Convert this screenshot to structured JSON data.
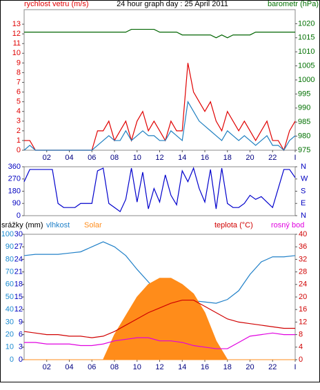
{
  "chart_data": [
    {
      "type": "line",
      "title": "24 hour graph day : 25 April 2011",
      "y_label": "rychlost vetru (m/s)",
      "y2_label": "barometr (hPa)",
      "axis_colors": {
        "y": "#e00000",
        "y2": "#007000",
        "x": "#000080"
      },
      "x": [
        0,
        0.5,
        1,
        1.5,
        2,
        2.5,
        3,
        3.5,
        4,
        4.5,
        5,
        5.5,
        6,
        6.5,
        7,
        7.5,
        8,
        8.5,
        9,
        9.5,
        10,
        10.5,
        11,
        11.5,
        12,
        12.5,
        13,
        13.5,
        14,
        14.5,
        15,
        15.5,
        16,
        16.5,
        17,
        17.5,
        18,
        18.5,
        19,
        19.5,
        20,
        20.5,
        21,
        21.5,
        22,
        22.5,
        23,
        23.5,
        24
      ],
      "xlim": [
        0,
        24
      ],
      "xticks": [
        {
          "value": 2,
          "label": "02"
        },
        {
          "value": 4,
          "label": "04"
        },
        {
          "value": 6,
          "label": "06"
        },
        {
          "value": 8,
          "label": "08"
        },
        10,
        12,
        14,
        16,
        18,
        20,
        22,
        {
          "value": 24,
          "label": "I"
        }
      ],
      "ylim": [
        0,
        14.5
      ],
      "yticks": [
        0,
        1,
        2,
        3,
        4,
        5,
        6,
        7,
        8,
        9,
        10,
        11,
        12,
        13
      ],
      "y2lim": [
        975,
        1025
      ],
      "y2ticks": [
        975,
        980,
        985,
        990,
        995,
        1000,
        1005,
        1010,
        1015,
        1020
      ],
      "series": [
        {
          "color": "#e00000",
          "values": [
            1,
            1,
            0,
            0,
            0,
            0,
            0,
            0,
            0,
            0,
            0,
            0,
            0,
            2,
            2,
            3,
            1,
            2,
            3,
            1,
            3,
            4,
            2,
            3,
            2,
            1,
            3,
            2,
            2,
            9,
            6,
            5,
            4,
            5,
            3,
            2,
            4,
            3,
            2,
            3,
            2,
            1,
            2,
            3,
            1,
            1,
            0,
            2,
            3
          ]
        },
        {
          "color": "#1e7fc0",
          "values": [
            0,
            0.5,
            0,
            0,
            0,
            0,
            0,
            0,
            0,
            0,
            0,
            0,
            0,
            0.5,
            1,
            1.5,
            1,
            1,
            2,
            1,
            1.5,
            2,
            1.5,
            1.5,
            1,
            1,
            2,
            1.5,
            1,
            5,
            4,
            3,
            2.5,
            2,
            1.5,
            1,
            2,
            1.5,
            1,
            1.5,
            1,
            0.5,
            1,
            1.5,
            0.5,
            0.5,
            0,
            1,
            1.5
          ]
        },
        {
          "color": "#006400",
          "axis": "y2",
          "values": [
            1017,
            1017,
            1017,
            1017,
            1017,
            1017,
            1017,
            1017,
            1017,
            1017,
            1017,
            1017,
            1017,
            1017,
            1017,
            1017,
            1017,
            1017,
            1017,
            1018,
            1018,
            1018,
            1018,
            1018,
            1017,
            1017,
            1017,
            1017,
            1016,
            1016,
            1016,
            1016,
            1016,
            1016,
            1015,
            1016,
            1015,
            1016,
            1016,
            1016,
            1016,
            1017,
            1017,
            1017,
            1017,
            1017,
            1017,
            1017,
            1017
          ]
        }
      ]
    },
    {
      "type": "line",
      "axis_colors": {
        "y": "#0000c0",
        "y2": "#0000c0"
      },
      "x": [
        0,
        0.5,
        1,
        1.5,
        2,
        2.5,
        3,
        3.5,
        4,
        4.5,
        5,
        5.5,
        6,
        6.5,
        7,
        7.5,
        8,
        8.5,
        9,
        9.5,
        10,
        10.5,
        11,
        11.5,
        12,
        12.5,
        13,
        13.5,
        14,
        14.5,
        15,
        15.5,
        16,
        16.5,
        17,
        17.5,
        18,
        18.5,
        19,
        19.5,
        20,
        20.5,
        21,
        21.5,
        22,
        22.5,
        23,
        23.5,
        24
      ],
      "xlim": [
        0,
        24
      ],
      "ylim": [
        0,
        360
      ],
      "yticks": [
        0,
        90,
        180,
        270,
        360
      ],
      "y2lim": [
        0,
        360
      ],
      "y2ticks": [
        {
          "value": 0,
          "label": "N"
        },
        {
          "value": 90,
          "label": "E"
        },
        {
          "value": 180,
          "label": "S"
        },
        {
          "value": 270,
          "label": "W"
        },
        {
          "value": 360,
          "label": "N"
        }
      ],
      "series": [
        {
          "color": "#0000cc",
          "values": [
            250,
            340,
            340,
            340,
            340,
            340,
            90,
            60,
            60,
            60,
            90,
            90,
            90,
            330,
            350,
            90,
            60,
            30,
            120,
            350,
            100,
            320,
            50,
            200,
            100,
            300,
            150,
            80,
            330,
            250,
            350,
            200,
            100,
            340,
            50,
            350,
            90,
            60,
            60,
            90,
            150,
            120,
            140,
            100,
            60,
            200,
            340,
            340,
            280
          ]
        }
      ]
    },
    {
      "type": "line",
      "y3_label": "srážky (mm)",
      "axis_colors": {
        "y": "#1a8ad0",
        "y3": "#0000c0",
        "y2": "#d00000",
        "x": "#000080"
      },
      "x": [
        0,
        1,
        2,
        3,
        4,
        5,
        6,
        7,
        8,
        9,
        10,
        11,
        12,
        13,
        14,
        15,
        16,
        17,
        18,
        19,
        20,
        21,
        22,
        23,
        24
      ],
      "xlim": [
        0,
        24
      ],
      "xticks": [
        {
          "value": 2,
          "label": "02"
        },
        {
          "value": 4,
          "label": "04"
        },
        {
          "value": 6,
          "label": "06"
        },
        {
          "value": 8,
          "label": "08"
        },
        10,
        12,
        14,
        16,
        18,
        20,
        22,
        {
          "value": 24,
          "label": "I"
        }
      ],
      "ylim": [
        0,
        100
      ],
      "yticks": [
        0,
        10,
        20,
        30,
        40,
        50,
        60,
        70,
        80,
        90,
        100
      ],
      "y3lim": [
        0,
        30
      ],
      "y3ticks": [
        0,
        3,
        6,
        9,
        12,
        15,
        18,
        21,
        24,
        27,
        30
      ],
      "y2lim": [
        0,
        40
      ],
      "y2ticks": [
        0,
        4,
        8,
        12,
        16,
        20,
        24,
        28,
        32,
        36,
        40
      ],
      "series": [
        {
          "name": "vlhkost",
          "color": "#2080c8",
          "values": [
            83,
            84,
            84,
            84,
            85,
            86,
            90,
            94,
            90,
            83,
            72,
            62,
            52,
            50,
            48,
            47,
            46,
            45,
            48,
            55,
            68,
            78,
            82,
            82,
            83
          ]
        },
        {
          "name": "Solar",
          "color": "#ff8c1a",
          "axis": "y2",
          "style": "area",
          "values": [
            0,
            0,
            0,
            0,
            0,
            0,
            0,
            0,
            8,
            14,
            20,
            24,
            26,
            26,
            24,
            21,
            15,
            6,
            0,
            0,
            0,
            0,
            0,
            0,
            0
          ]
        },
        {
          "name": "teplota (°C)",
          "color": "#d00000",
          "axis": "y2",
          "values": [
            9,
            8.5,
            8,
            8,
            7.5,
            7.5,
            7,
            7.5,
            9,
            11,
            13,
            15,
            16.5,
            18,
            19,
            19,
            17,
            15,
            13,
            12,
            11.5,
            11,
            10.5,
            10,
            10
          ]
        },
        {
          "name": "rosný bod",
          "color": "#e000e0",
          "axis": "y2",
          "values": [
            5.5,
            5.5,
            5,
            5,
            5,
            4.5,
            4.5,
            5,
            6,
            6.5,
            7,
            7,
            6,
            6,
            5.5,
            4.5,
            4,
            3.5,
            3.5,
            5.5,
            7.5,
            8,
            8.5,
            8,
            8
          ]
        }
      ]
    }
  ]
}
